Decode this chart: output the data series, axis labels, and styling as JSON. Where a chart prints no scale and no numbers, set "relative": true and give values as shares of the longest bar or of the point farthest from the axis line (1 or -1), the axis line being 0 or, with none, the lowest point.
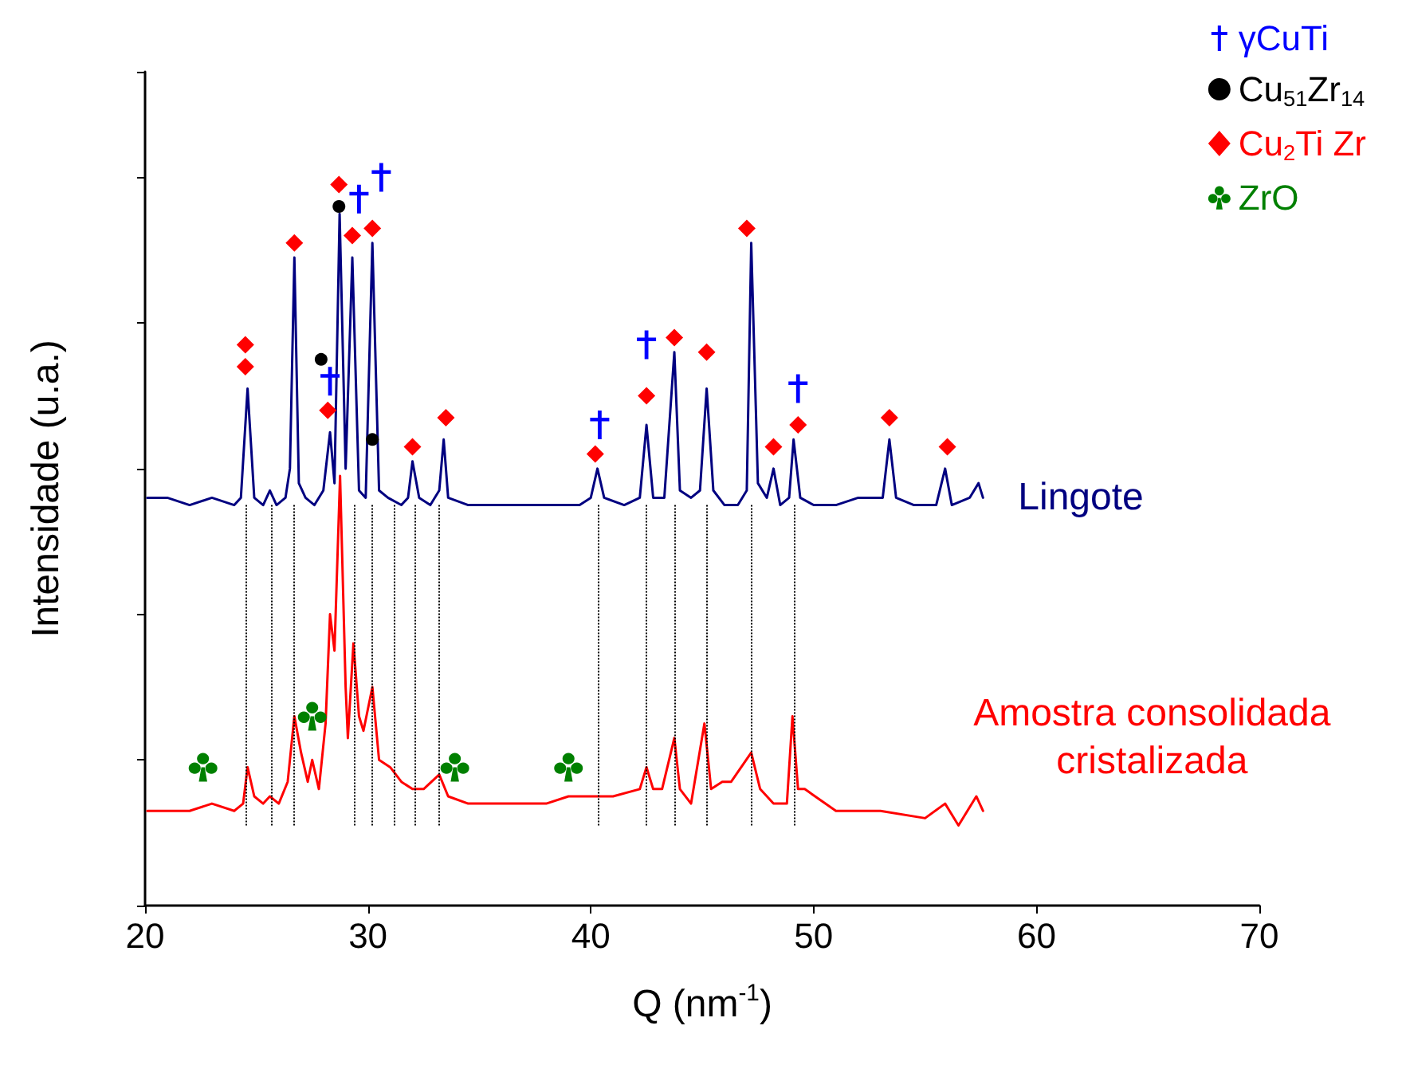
{
  "chart_data": {
    "type": "line",
    "relative": true,
    "xlabel": "Q (nm$^{-1}$)",
    "ylabel": "Intensidade (u.a.)",
    "xlim": [
      20,
      70
    ],
    "xticks": [
      20,
      30,
      40,
      50,
      60,
      70
    ],
    "tick_labels": "x",
    "grid": false,
    "legend": "top right",
    "marker": "none",
    "series": [
      {
        "name": "Lingote",
        "color": "#000080",
        "x": [
          20.1,
          21,
          22,
          23,
          24,
          24.3,
          24.6,
          24.9,
          25.3,
          25.6,
          25.9,
          26.3,
          26.5,
          26.7,
          26.9,
          27.2,
          27.6,
          28.0,
          28.3,
          28.5,
          28.73,
          29.0,
          29.3,
          29.6,
          29.9,
          30.2,
          30.5,
          30.9,
          31.5,
          31.8,
          32.0,
          32.3,
          32.8,
          33.2,
          33.4,
          33.6,
          34.5,
          35.5,
          36.5,
          37.5,
          38.5,
          39.5,
          40.0,
          40.3,
          40.6,
          41.5,
          42.2,
          42.5,
          42.8,
          43.3,
          43.75,
          44.0,
          44.5,
          44.9,
          45.2,
          45.5,
          46.0,
          46.6,
          47.0,
          47.2,
          47.5,
          47.9,
          48.2,
          48.5,
          48.9,
          49.1,
          49.4,
          50,
          51,
          52,
          53.1,
          53.4,
          53.7,
          54.5,
          55.5,
          55.9,
          56.2,
          57.0,
          57.4,
          57.6
        ],
        "values": [
          0.56,
          0.56,
          0.55,
          0.56,
          0.55,
          0.56,
          0.71,
          0.56,
          0.55,
          0.57,
          0.55,
          0.56,
          0.6,
          0.89,
          0.58,
          0.56,
          0.55,
          0.57,
          0.65,
          0.58,
          0.95,
          0.6,
          0.89,
          0.57,
          0.56,
          0.91,
          0.57,
          0.56,
          0.55,
          0.56,
          0.61,
          0.56,
          0.55,
          0.57,
          0.64,
          0.56,
          0.55,
          0.55,
          0.55,
          0.55,
          0.55,
          0.55,
          0.56,
          0.6,
          0.56,
          0.55,
          0.56,
          0.66,
          0.56,
          0.56,
          0.76,
          0.57,
          0.56,
          0.57,
          0.71,
          0.57,
          0.55,
          0.55,
          0.57,
          0.91,
          0.58,
          0.56,
          0.6,
          0.55,
          0.56,
          0.64,
          0.56,
          0.55,
          0.55,
          0.56,
          0.56,
          0.64,
          0.56,
          0.55,
          0.55,
          0.6,
          0.55,
          0.56,
          0.58,
          0.56
        ]
      },
      {
        "name": "Amostra consolidada\ncristalizada",
        "color": "#ff0000",
        "x": [
          20.1,
          21,
          22,
          23,
          24,
          24.4,
          24.6,
          24.9,
          25.3,
          25.6,
          26.0,
          26.4,
          26.7,
          27.0,
          27.3,
          27.5,
          27.8,
          28.1,
          28.3,
          28.5,
          28.75,
          29.0,
          29.1,
          29.35,
          29.6,
          29.8,
          30.2,
          30.5,
          31.0,
          31.5,
          32.0,
          32.5,
          33.2,
          33.6,
          34.5,
          36,
          38,
          39,
          40.3,
          41,
          42.2,
          42.5,
          42.8,
          43.2,
          43.75,
          44.0,
          44.5,
          45.1,
          45.4,
          45.9,
          46.3,
          47.2,
          47.6,
          48.2,
          48.8,
          49.05,
          49.3,
          49.6,
          51,
          53,
          55,
          55.9,
          56.5,
          57.3,
          57.6
        ],
        "values": [
          0.13,
          0.13,
          0.13,
          0.14,
          0.13,
          0.14,
          0.19,
          0.15,
          0.14,
          0.15,
          0.14,
          0.17,
          0.26,
          0.21,
          0.17,
          0.2,
          0.16,
          0.25,
          0.4,
          0.35,
          0.59,
          0.3,
          0.23,
          0.36,
          0.26,
          0.24,
          0.3,
          0.2,
          0.19,
          0.17,
          0.16,
          0.16,
          0.18,
          0.15,
          0.14,
          0.14,
          0.14,
          0.15,
          0.15,
          0.15,
          0.16,
          0.19,
          0.16,
          0.16,
          0.23,
          0.16,
          0.14,
          0.25,
          0.16,
          0.17,
          0.17,
          0.21,
          0.16,
          0.14,
          0.14,
          0.26,
          0.16,
          0.16,
          0.13,
          0.13,
          0.12,
          0.14,
          0.11,
          0.15,
          0.13
        ]
      },
      {
        "name": "γCuTi",
        "type": "scatter",
        "marker": "cross",
        "color": "#0000ff",
        "x": [
          28.3,
          29.6,
          30.6,
          40.4,
          42.5,
          49.3
        ],
        "values": [
          0.72,
          0.97,
          1.0,
          0.66,
          0.77,
          0.71
        ]
      },
      {
        "name": "Cu$_{51}$Zr$_{14}$",
        "type": "scatter",
        "marker": "circle",
        "color": "#000000",
        "x": [
          27.9,
          28.7,
          30.2
        ],
        "values": [
          0.75,
          0.96,
          0.64
        ]
      },
      {
        "name": "Cu$_{2}$Ti Zr",
        "type": "scatter",
        "marker": "diamond",
        "color": "#ff0000",
        "x": [
          24.5,
          24.5,
          26.7,
          28.2,
          28.7,
          29.3,
          30.2,
          32.0,
          33.5,
          40.2,
          42.5,
          43.75,
          45.2,
          47.0,
          48.2,
          49.3,
          53.4,
          56.0
        ],
        "values": [
          0.77,
          0.74,
          0.91,
          0.68,
          0.99,
          0.92,
          0.93,
          0.63,
          0.67,
          0.62,
          0.7,
          0.78,
          0.76,
          0.93,
          0.63,
          0.66,
          0.67,
          0.63
        ]
      },
      {
        "name": "ZrO",
        "type": "scatter",
        "color": "#008000",
        "x": [
          22.6,
          27.5,
          33.9,
          39.0
        ],
        "values": [
          0.19,
          0.26,
          0.19,
          0.19
        ]
      }
    ],
    "ref_lines": [
      {
        "axis": "x",
        "value": 24.5,
        "color": "#000000",
        "line_style": "dotted"
      },
      {
        "axis": "x",
        "value": 25.7,
        "color": "#000000",
        "line_style": "dotted"
      },
      {
        "axis": "x",
        "value": 26.7,
        "color": "#000000",
        "line_style": "dotted"
      },
      {
        "axis": "x",
        "value": 29.4,
        "color": "#000000",
        "line_style": "dotted"
      },
      {
        "axis": "x",
        "value": 30.2,
        "color": "#000000",
        "line_style": "dotted"
      },
      {
        "axis": "x",
        "value": 31.2,
        "color": "#000000",
        "line_style": "dotted"
      },
      {
        "axis": "x",
        "value": 32.1,
        "color": "#000000",
        "line_style": "dotted"
      },
      {
        "axis": "x",
        "value": 33.2,
        "color": "#000000",
        "line_style": "dotted"
      },
      {
        "axis": "x",
        "value": 40.3,
        "color": "#000000",
        "line_style": "dotted"
      },
      {
        "axis": "x",
        "value": 42.5,
        "color": "#000000",
        "line_style": "dotted"
      },
      {
        "axis": "x",
        "value": 43.8,
        "color": "#000000",
        "line_style": "dotted"
      },
      {
        "axis": "x",
        "value": 45.2,
        "color": "#000000",
        "line_style": "dotted"
      },
      {
        "axis": "x",
        "value": 47.2,
        "color": "#000000",
        "line_style": "dotted"
      },
      {
        "axis": "x",
        "value": 49.1,
        "color": "#000000",
        "line_style": "dotted"
      }
    ]
  }
}
